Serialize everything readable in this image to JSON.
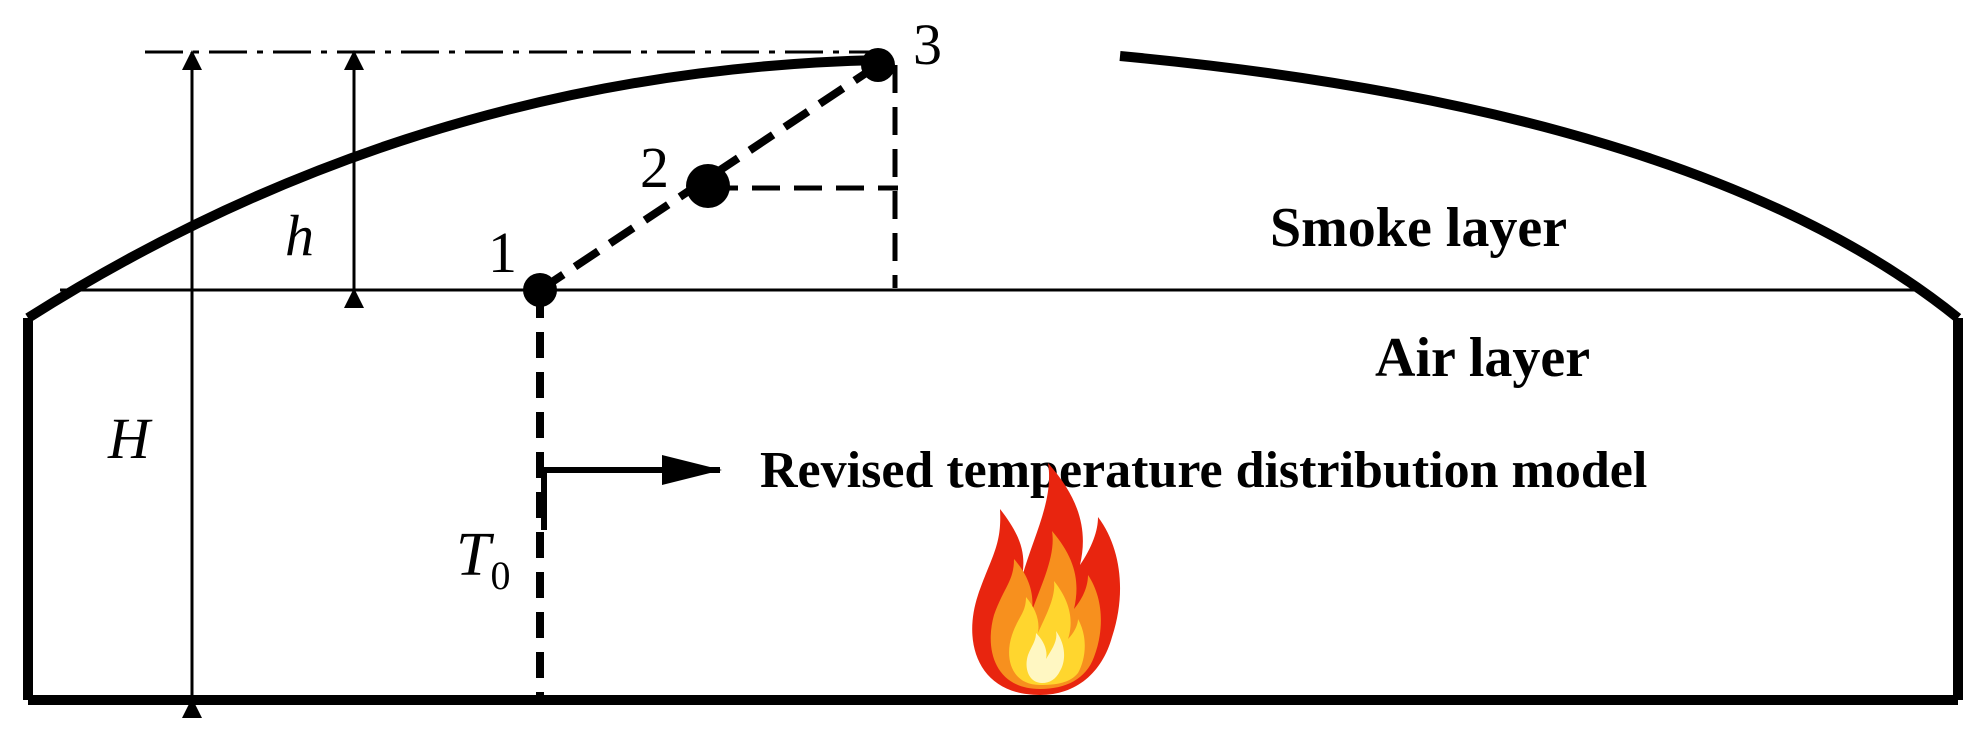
{
  "labels": {
    "smoke_layer": "Smoke layer",
    "air_layer": "Air layer",
    "model": "Revised temperature distribution model",
    "H": "H",
    "h": "h",
    "T": "T",
    "T_sub": "0",
    "p1": "1",
    "p2": "2",
    "p3": "3"
  },
  "icons": {
    "fire": "fire-icon"
  },
  "colors": {
    "stroke": "#000000",
    "background": "#ffffff",
    "flame_outer": "#e8250f",
    "flame_mid": "#f7901e",
    "flame_inner": "#ffd62e",
    "flame_core": "#fff7c2"
  }
}
